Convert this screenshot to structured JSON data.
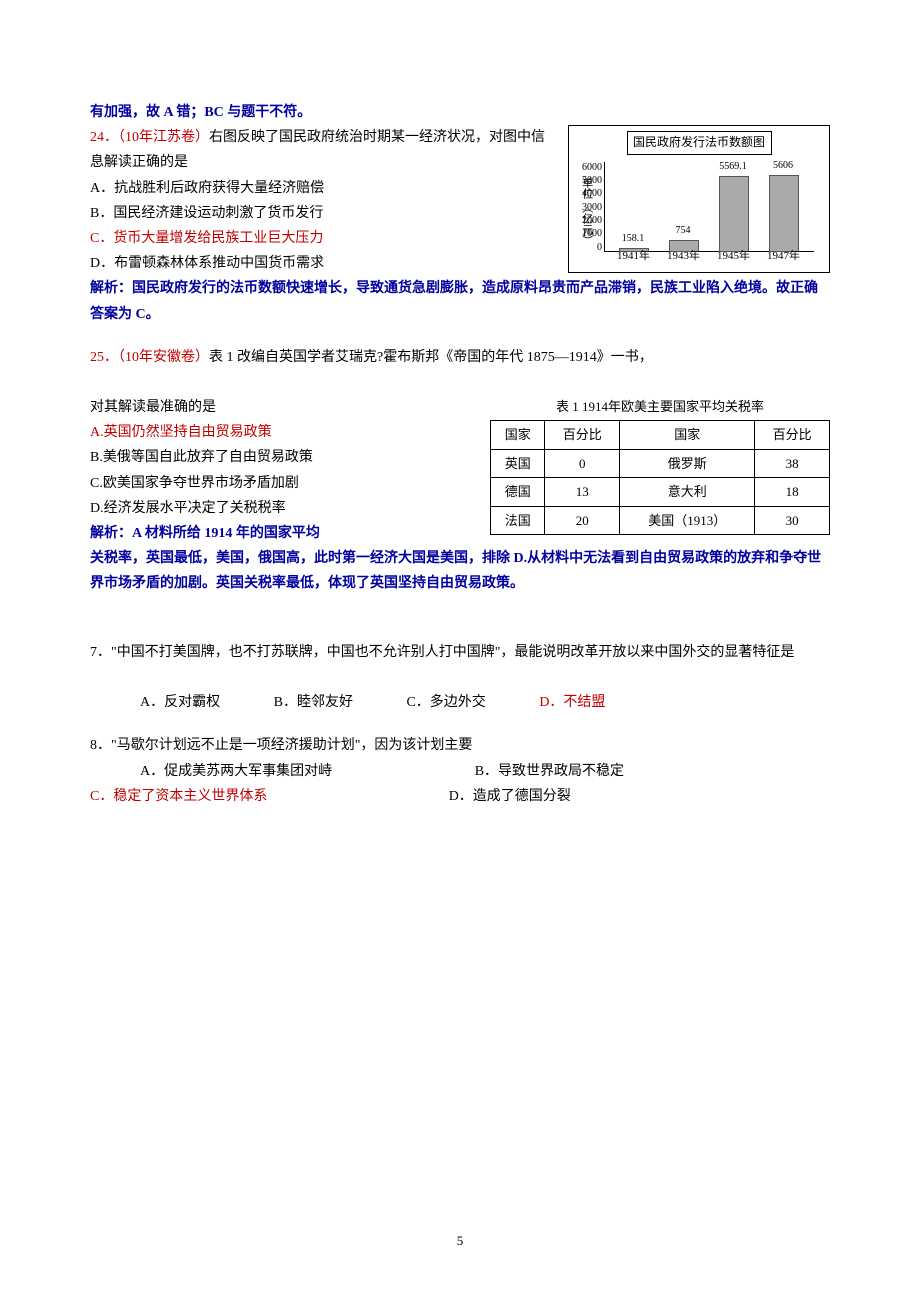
{
  "intro_line": "有加强，故 A 错；BC 与题干不符。",
  "q24": {
    "number": "24．",
    "src": "（10年江苏卷）",
    "stem1": "右图反映了国民政府统治时期某一经济状况，对图中信息解读正确的是",
    "optA": "A．抗战胜利后政府获得大量经济赔偿",
    "optB": "B．国民经济建设运动刺激了货币发行",
    "optC": "C．货币大量增发给民族工业巨大压力",
    "optD": "D．布雷顿森林体系推动中国货币需求",
    "analysis_label": "解析",
    "analysis": "：国民政府发行的法币数额快速增长，导致通货急剧膨胀，造成原料昂贵而产品滞销，民族工业陷入绝境。故正确答案为 C。",
    "chart": {
      "title": "国民政府发行法币数额图",
      "y_label": "单位\n（亿元）",
      "y_ticks": [
        "0",
        "1000",
        "2000",
        "3000",
        "4000",
        "5000",
        "6000"
      ],
      "categories": [
        "1941年",
        "1943年",
        "1945年",
        "1947年"
      ],
      "values": [
        158.1,
        754,
        5569.1,
        5606
      ],
      "ymax": 6000,
      "bar_color": "#aaaaaa",
      "bg": "#ffffff"
    }
  },
  "q25": {
    "number": "25．",
    "src": "（10年安徽卷）",
    "stem": "表 1 改编自英国学者艾瑞克?霍布斯邦《帝国的年代 1875—1914》一书，",
    "stem2": "对其解读最准确的是",
    "optA": "A.英国仍然坚持自由贸易政策",
    "optB": "B.美俄等国自此放弃了自由贸易政策",
    "optC": "C.欧美国家争夺世界市场矛盾加剧",
    "optD": "D.经济发展水平决定了关税税率",
    "analysis_label": "解析",
    "analysis1": "：A  材料所给 1914 年的国家平均",
    "analysis2": "关税率，英国最低，美国，俄国高，此时第一经济大国是美国，排除 D.从材料中无法看到自由贸易政策的放弃和争夺世界市场矛盾的加剧。英国关税率最低，体现了英国坚持自由贸易政策。",
    "table": {
      "caption": "表 1  1914年欧美主要国家平均关税率",
      "headers": [
        "国家",
        "百分比",
        "国家",
        "百分比"
      ],
      "rows": [
        [
          "英国",
          "0",
          "俄罗斯",
          "38"
        ],
        [
          "德国",
          "13",
          "意大利",
          "18"
        ],
        [
          "法国",
          "20",
          "美国（1913）",
          "30"
        ]
      ]
    }
  },
  "q7": {
    "number": "7．",
    "stem": "\"中国不打美国牌，也不打苏联牌，中国也不允许别人打中国牌\"，最能说明改革开放以来中国外交的显著特征是",
    "optA": "A．反对霸权",
    "optB": "B．睦邻友好",
    "optC": "C．多边外交",
    "optD": "D．不结盟"
  },
  "q8": {
    "number": "8．",
    "stem": "\"马歇尔计划远不止是一项经济援助计划\"，因为该计划主要",
    "optA": "A．促成美苏两大军事集团对峙",
    "optB": "B．导致世界政局不稳定",
    "optC": "C．稳定了资本主义世界体系",
    "optD": "D．造成了德国分裂"
  },
  "page_num": "5"
}
